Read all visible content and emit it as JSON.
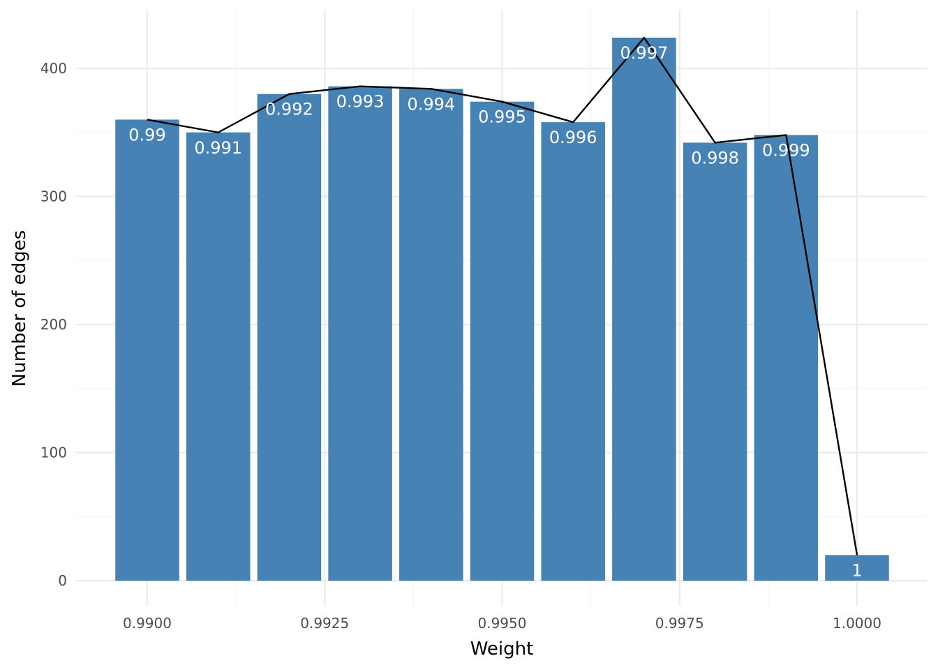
{
  "chart_data": {
    "type": "bar",
    "title": "",
    "xlabel": "Weight",
    "ylabel": "Number of edges",
    "x": [
      0.99,
      0.991,
      0.992,
      0.993,
      0.994,
      0.995,
      0.996,
      0.997,
      0.998,
      0.999,
      1.0
    ],
    "values": [
      360,
      350,
      380,
      386,
      384,
      374,
      358,
      424,
      342,
      348,
      20
    ],
    "bar_labels": [
      "0.99",
      "0.991",
      "0.992",
      "0.993",
      "0.994",
      "0.995",
      "0.996",
      "0.997",
      "0.998",
      "0.999",
      "1"
    ],
    "overlay_line": true,
    "xlim": [
      0.9891,
      1.0009
    ],
    "ylim": [
      0,
      445
    ],
    "x_ticks": [
      0.99,
      0.9925,
      0.995,
      0.9975,
      1.0
    ],
    "x_tick_labels": [
      "0.9900",
      "0.9925",
      "0.9950",
      "0.9975",
      "1.0000"
    ],
    "y_ticks": [
      0,
      100,
      200,
      300,
      400
    ],
    "y_tick_labels": [
      "0",
      "100",
      "200",
      "300",
      "400"
    ],
    "grid": true,
    "colors": {
      "bar": "#4682b4",
      "line": "#000000",
      "grid_major": "#ebebeb",
      "grid_minor": "#f4f4f4",
      "bar_label": "#ffffff"
    }
  }
}
